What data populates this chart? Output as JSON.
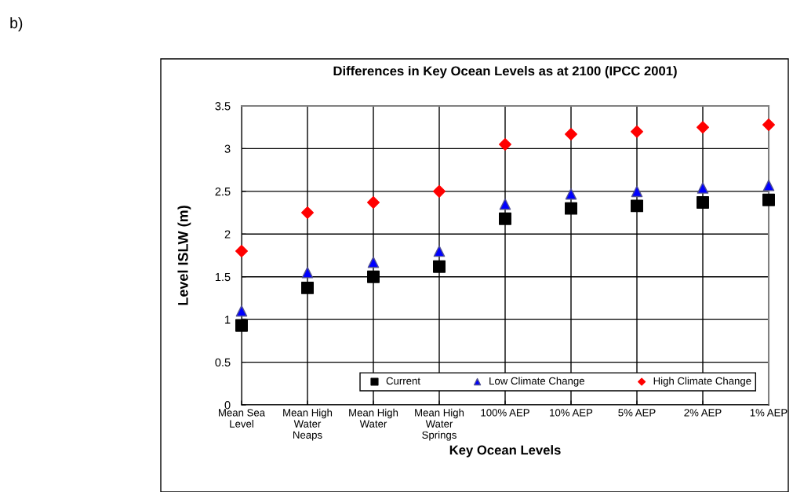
{
  "chart_data": {
    "type": "scatter",
    "title": "Differences in Key Ocean Levels as at 2100 (IPCC 2001)",
    "xlabel": "Key Ocean Levels",
    "ylabel": "Level ISLW (m)",
    "annotations": [
      "b)"
    ],
    "categories": [
      "Mean Sea\nLevel",
      "Mean High\nWater\nNeaps",
      "Mean High\nWater",
      "Mean High\nWater\nSprings",
      "100% AEP",
      "10% AEP",
      "5% AEP",
      "2% AEP",
      "1% AEP"
    ],
    "series": [
      {
        "name": "Current",
        "color": "#000000",
        "marker": "square",
        "values": [
          0.93,
          1.37,
          1.5,
          1.62,
          2.18,
          2.3,
          2.33,
          2.37,
          2.4
        ]
      },
      {
        "name": "Low Climate Change",
        "color": "#0000ff",
        "marker": "triangle",
        "values": [
          1.1,
          1.55,
          1.67,
          1.8,
          2.35,
          2.47,
          2.5,
          2.54,
          2.57
        ]
      },
      {
        "name": "High Climate Change",
        "color": "#ff0000",
        "marker": "diamond",
        "values": [
          1.8,
          2.25,
          2.37,
          2.5,
          3.05,
          3.17,
          3.2,
          3.25,
          3.28
        ]
      }
    ],
    "ylim": [
      0,
      3.5
    ],
    "yticks": [
      0,
      0.5,
      1,
      1.5,
      2,
      2.5,
      3,
      3.5
    ],
    "grid": true,
    "legend": "bottom right"
  }
}
